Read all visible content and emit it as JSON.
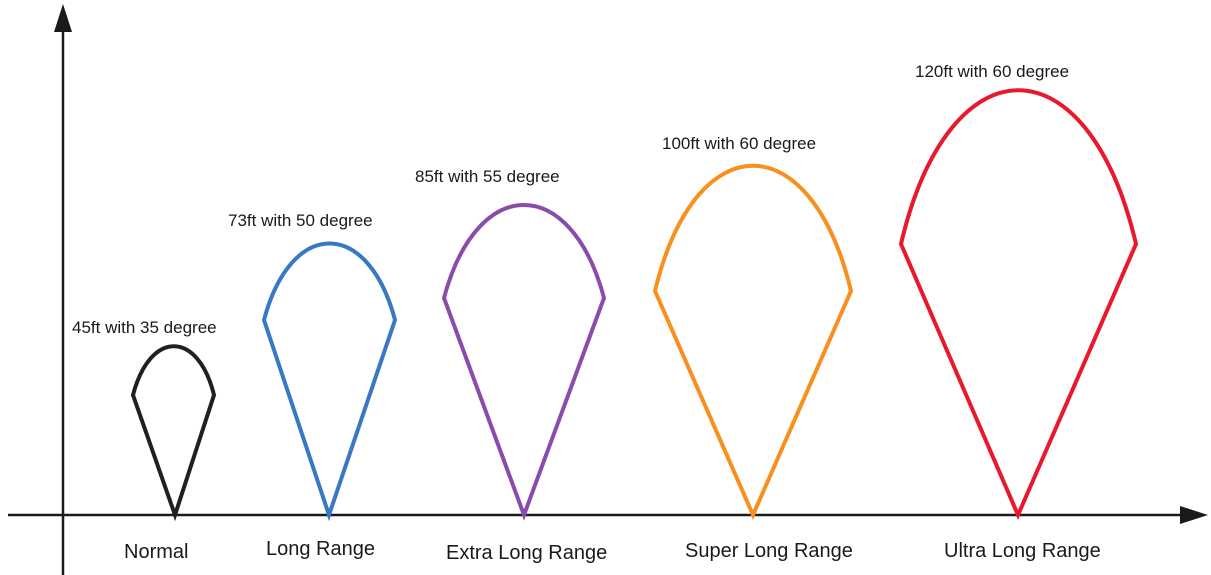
{
  "modes": [
    {
      "label": "Normal",
      "caption": "45ft with 35 degree",
      "distance_ft": 45,
      "angle_deg": 35,
      "color": "#231f20"
    },
    {
      "label": "Long Range",
      "caption": "73ft with 50 degree",
      "distance_ft": 73,
      "angle_deg": 50,
      "color": "#3a78c4"
    },
    {
      "label": "Extra Long Range",
      "caption": "85ft with 55 degree",
      "distance_ft": 85,
      "angle_deg": 55,
      "color": "#8a4cab"
    },
    {
      "label": "Super Long Range",
      "caption": "100ft with 60 degree",
      "distance_ft": 100,
      "angle_deg": 60,
      "color": "#f7901e"
    },
    {
      "label": "Ultra Long Range",
      "caption": "120ft with 60 degree",
      "distance_ft": 120,
      "angle_deg": 60,
      "color": "#e8192c"
    }
  ]
}
